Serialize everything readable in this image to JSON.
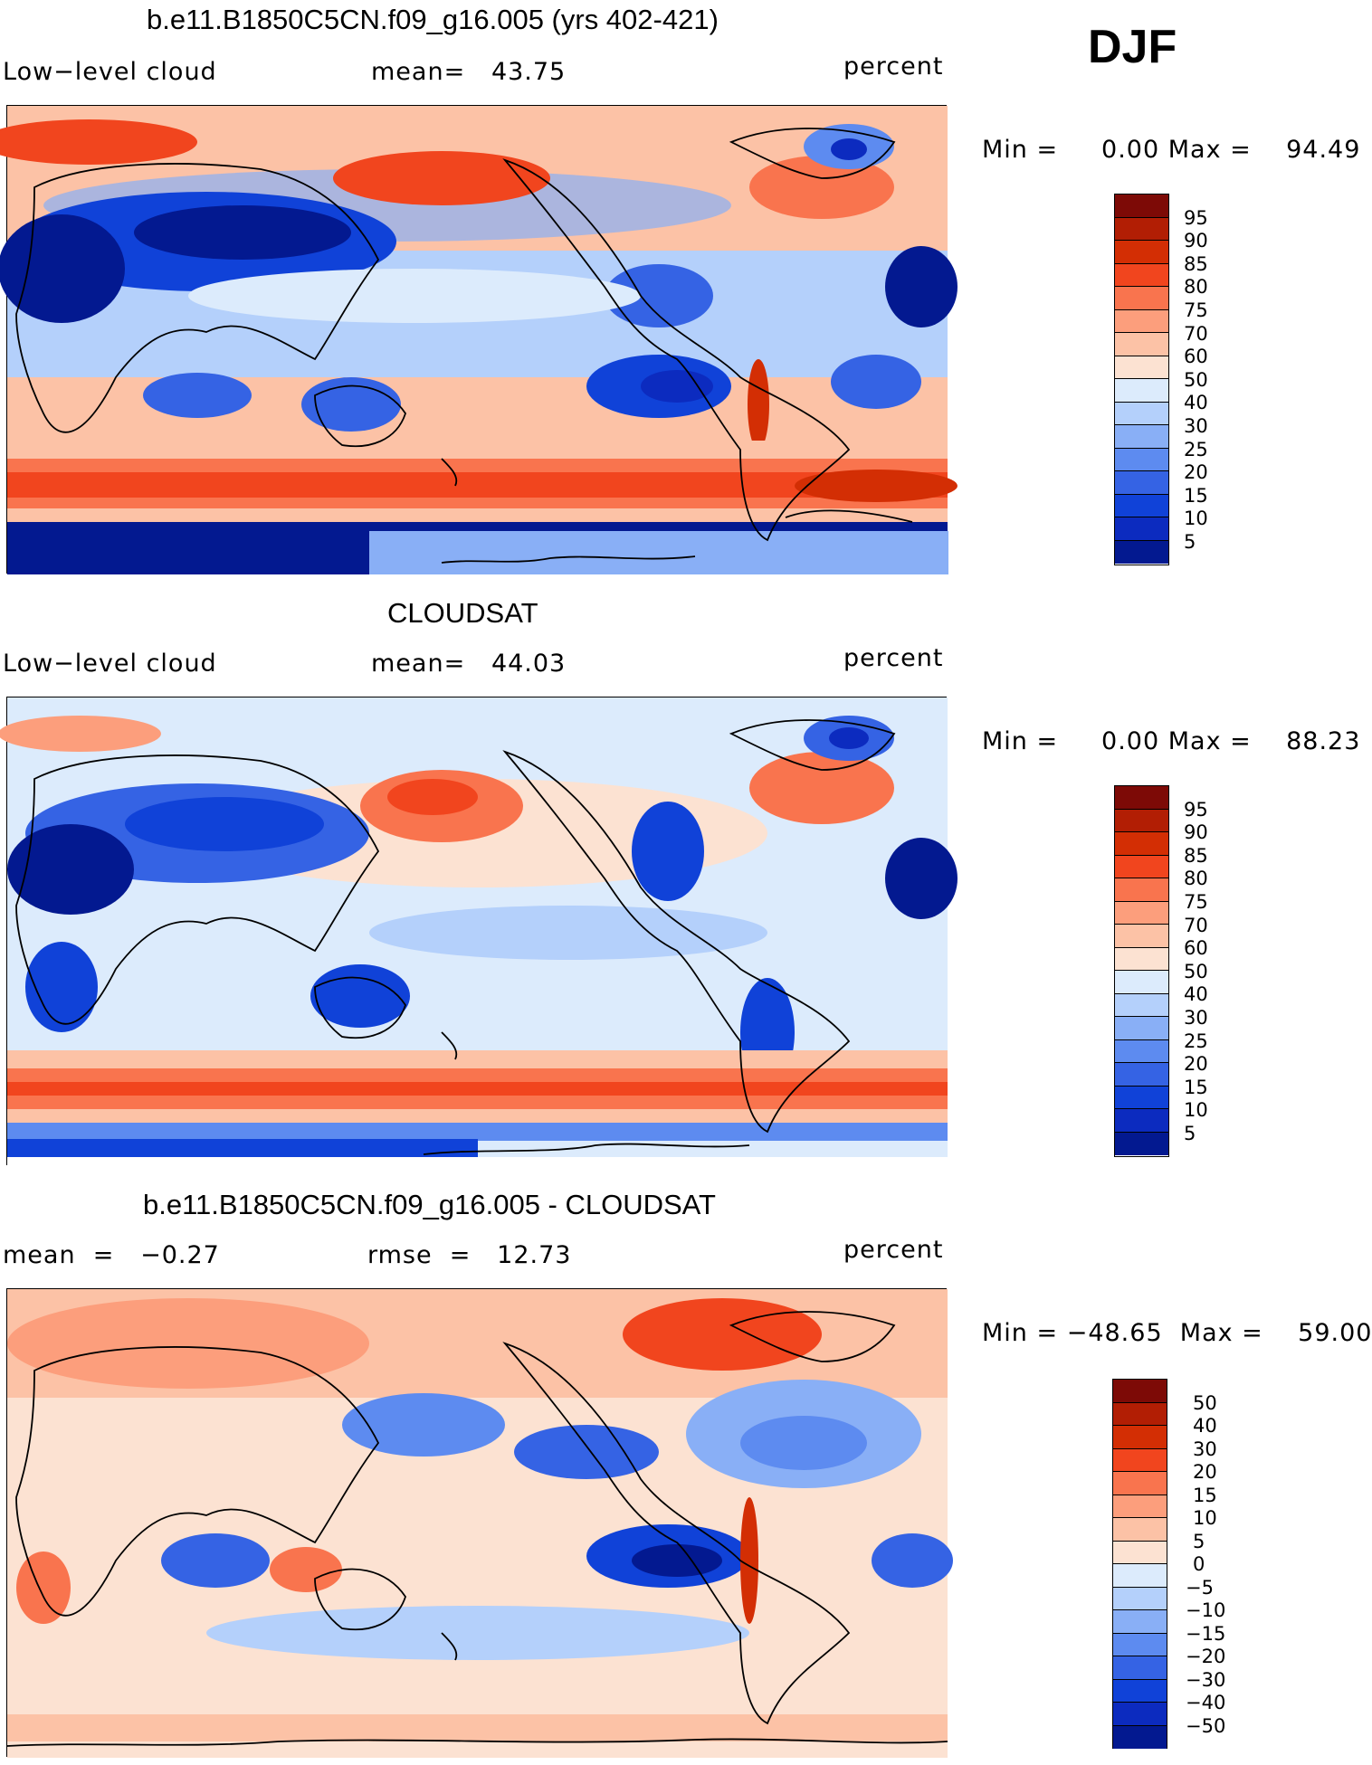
{
  "season": "DJF",
  "colors": {
    "positive": [
      "#FCE2D2",
      "#FCC2A6",
      "#FC9E7C",
      "#F9744E",
      "#F1451E",
      "#D32E04",
      "#B21E04",
      "#7D0A06"
    ],
    "negative": [
      "#DCEBFC",
      "#B4D0FB",
      "#89AFF6",
      "#5D8BF0",
      "#3563E4",
      "#1042D8",
      "#0C2BBF",
      "#031990",
      "#0C0F6A"
    ],
    "background": "#ffffff",
    "coastline": "#000000"
  },
  "panels": [
    {
      "title": "b.e11.B1850C5CN.f09_g16.005 (yrs 402-421)",
      "left_label": "Low−level cloud",
      "center_label": "mean=   43.75",
      "right_label": "percent",
      "minmax": "Min =     0.00 Max =    94.49",
      "colorbar_labels": [
        "95",
        "90",
        "85",
        "80",
        "75",
        "70",
        "60",
        "50",
        "40",
        "30",
        "25",
        "20",
        "15",
        "10",
        "5"
      ],
      "colorbar_colors": [
        "#7D0A06",
        "#B21E04",
        "#D32E04",
        "#F1451E",
        "#F9744E",
        "#FC9E7C",
        "#FCC2A6",
        "#FCE2D2",
        "#DCEBFC",
        "#B4D0FB",
        "#89AFF6",
        "#5D8BF0",
        "#3563E4",
        "#1042D8",
        "#0C2BBF",
        "#031990"
      ]
    },
    {
      "title": "CLOUDSAT",
      "left_label": "Low−level cloud",
      "center_label": "mean=   44.03",
      "right_label": "percent",
      "minmax": "Min =     0.00 Max =    88.23",
      "colorbar_labels": [
        "95",
        "90",
        "85",
        "80",
        "75",
        "70",
        "60",
        "50",
        "40",
        "30",
        "25",
        "20",
        "15",
        "10",
        "5"
      ],
      "colorbar_colors": [
        "#7D0A06",
        "#B21E04",
        "#D32E04",
        "#F1451E",
        "#F9744E",
        "#FC9E7C",
        "#FCC2A6",
        "#FCE2D2",
        "#DCEBFC",
        "#B4D0FB",
        "#89AFF6",
        "#5D8BF0",
        "#3563E4",
        "#1042D8",
        "#0C2BBF",
        "#031990"
      ]
    },
    {
      "title": "b.e11.B1850C5CN.f09_g16.005 - CLOUDSAT",
      "left_label": "mean  =   −0.27",
      "center_label": "rmse  =   12.73",
      "right_label": "percent",
      "minmax": "Min = −48.65  Max =    59.00",
      "colorbar_labels": [
        "50",
        "40",
        "30",
        "20",
        "15",
        "10",
        "5",
        "0",
        "−5",
        "−10",
        "−15",
        "−20",
        "−30",
        "−40",
        "−50"
      ],
      "colorbar_colors": [
        "#7D0A06",
        "#B21E04",
        "#D32E04",
        "#F1451E",
        "#F9744E",
        "#FC9E7C",
        "#FCC2A6",
        "#FCE2D2",
        "#DCEBFC",
        "#B4D0FB",
        "#89AFF6",
        "#5D8BF0",
        "#3563E4",
        "#1042D8",
        "#0C2BBF",
        "#031990"
      ]
    }
  ]
}
